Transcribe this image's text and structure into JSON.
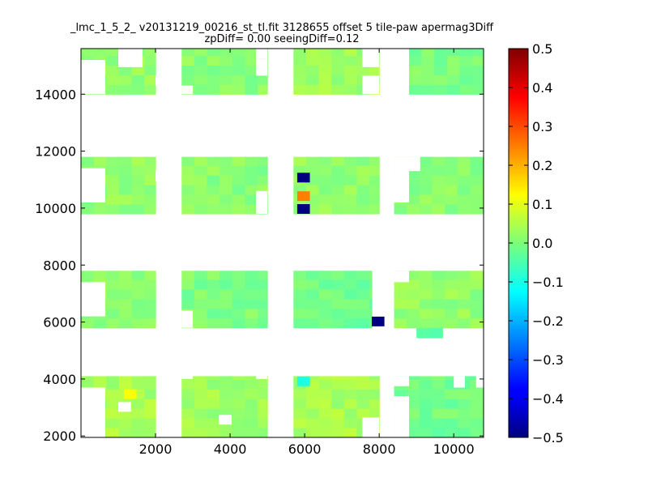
{
  "chart_data": {
    "type": "heatmap",
    "title_lines": [
      "_lmc_1_5_2_ v20131219_00216_st_tl.fit 3128655 offset 5 tile-paw apermag3Diff",
      "zpDiff= 0.00 seeingDiff=0.12"
    ],
    "xlim": [
      0,
      10800
    ],
    "ylim": [
      1950,
      15600
    ],
    "x_ticks": [
      2000,
      4000,
      6000,
      8000,
      10000
    ],
    "y_ticks": [
      2000,
      4000,
      6000,
      8000,
      10000,
      12000,
      14000
    ],
    "cell_size": 340,
    "colorbar": {
      "colormap": "jet",
      "vmin": -0.5,
      "vmax": 0.5,
      "ticks": [
        0.5,
        0.4,
        0.3,
        0.2,
        0.1,
        0.0,
        -0.1,
        -0.2,
        -0.3,
        -0.4,
        -0.5
      ]
    },
    "regions": [
      {
        "x": [
          0,
          2000
        ],
        "y": [
          14000,
          15600
        ],
        "value": 0.02
      },
      {
        "x": [
          2700,
          5000
        ],
        "y": [
          14000,
          15600
        ],
        "value": 0.01
      },
      {
        "x": [
          5700,
          8000
        ],
        "y": [
          14000,
          15600
        ],
        "value": 0.03
      },
      {
        "x": [
          8800,
          10800
        ],
        "y": [
          14000,
          15600
        ],
        "value": 0.0
      },
      {
        "x": [
          0,
          2000
        ],
        "y": [
          9800,
          11800
        ],
        "value": 0.02
      },
      {
        "x": [
          2700,
          5000
        ],
        "y": [
          9800,
          11800
        ],
        "value": 0.01
      },
      {
        "x": [
          5700,
          8000
        ],
        "y": [
          9800,
          11800
        ],
        "value": 0.02
      },
      {
        "x": [
          8400,
          10800
        ],
        "y": [
          9800,
          11800
        ],
        "value": 0.01
      },
      {
        "x": [
          0,
          2000
        ],
        "y": [
          5800,
          7800
        ],
        "value": 0.02
      },
      {
        "x": [
          2700,
          5000
        ],
        "y": [
          5800,
          7800
        ],
        "value": 0.0
      },
      {
        "x": [
          5700,
          7800
        ],
        "y": [
          5800,
          7800
        ],
        "value": -0.01
      },
      {
        "x": [
          8400,
          10800
        ],
        "y": [
          5800,
          7800
        ],
        "value": 0.02
      },
      {
        "x": [
          0,
          2000
        ],
        "y": [
          1950,
          4100
        ],
        "value": 0.04
      },
      {
        "x": [
          2700,
          5000
        ],
        "y": [
          1950,
          4100
        ],
        "value": 0.03
      },
      {
        "x": [
          5700,
          8000
        ],
        "y": [
          1950,
          4100
        ],
        "value": 0.04
      },
      {
        "x": [
          8400,
          10800
        ],
        "y": [
          1950,
          4100
        ],
        "value": -0.01
      }
    ],
    "gaps": [
      {
        "x": [
          0,
          650
        ],
        "y": [
          14000,
          15200
        ]
      },
      {
        "x": [
          1000,
          1650
        ],
        "y": [
          14950,
          15600
        ]
      },
      {
        "x": [
          2000,
          2350
        ],
        "y": [
          14300,
          14650
        ]
      },
      {
        "x": [
          2700,
          3000
        ],
        "y": [
          14000,
          14300
        ]
      },
      {
        "x": [
          4700,
          5000
        ],
        "y": [
          14650,
          15250
        ]
      },
      {
        "x": [
          4700,
          5000
        ],
        "y": [
          15250,
          15600
        ]
      },
      {
        "x": [
          7550,
          8000
        ],
        "y": [
          14000,
          14650
        ]
      },
      {
        "x": [
          7550,
          8000
        ],
        "y": [
          14950,
          15600
        ]
      },
      {
        "x": [
          0,
          650
        ],
        "y": [
          10200,
          11400
        ]
      },
      {
        "x": [
          2000,
          2350
        ],
        "y": [
          10950,
          11300
        ]
      },
      {
        "x": [
          4700,
          5000
        ],
        "y": [
          9800,
          10600
        ]
      },
      {
        "x": [
          8800,
          9100
        ],
        "y": [
          11300,
          11800
        ]
      },
      {
        "x": [
          8400,
          8800
        ],
        "y": [
          10200,
          11800
        ]
      },
      {
        "x": [
          0,
          650
        ],
        "y": [
          6200,
          7400
        ]
      },
      {
        "x": [
          2700,
          3000
        ],
        "y": [
          5800,
          6400
        ]
      },
      {
        "x": [
          8400,
          8800
        ],
        "y": [
          7400,
          7800
        ]
      },
      {
        "x": [
          0,
          650
        ],
        "y": [
          1950,
          3700
        ]
      },
      {
        "x": [
          2700,
          3000
        ],
        "y": [
          4000,
          4100
        ]
      },
      {
        "x": [
          4700,
          5000
        ],
        "y": [
          4000,
          4100
        ]
      },
      {
        "x": [
          7550,
          8000
        ],
        "y": [
          1950,
          2650
        ]
      },
      {
        "x": [
          8400,
          8800
        ],
        "y": [
          1950,
          3400
        ]
      },
      {
        "x": [
          8400,
          8800
        ],
        "y": [
          3750,
          4100
        ]
      },
      {
        "x": [
          10000,
          10300
        ],
        "y": [
          3700,
          4100
        ]
      },
      {
        "x": [
          10600,
          10800
        ],
        "y": [
          3700,
          4100
        ]
      }
    ],
    "extras": [
      {
        "x": [
          9000,
          9700
        ],
        "y": [
          5450,
          5800
        ],
        "value": -0.02
      }
    ],
    "special_cells": [
      {
        "x": 5800,
        "y": 10900,
        "value": -0.5
      },
      {
        "x": 5800,
        "y": 10250,
        "value": 0.25
      },
      {
        "x": 5800,
        "y": 9800,
        "value": -0.5
      },
      {
        "x": 7800,
        "y": 5850,
        "value": -0.5
      },
      {
        "x": 5800,
        "y": 3750,
        "value": -0.1
      },
      {
        "x": 1150,
        "y": 3300,
        "value": 0.12
      }
    ],
    "special_gaps": [
      {
        "x": 1000,
        "y": 2850
      },
      {
        "x": 3700,
        "y": 2400
      }
    ]
  }
}
